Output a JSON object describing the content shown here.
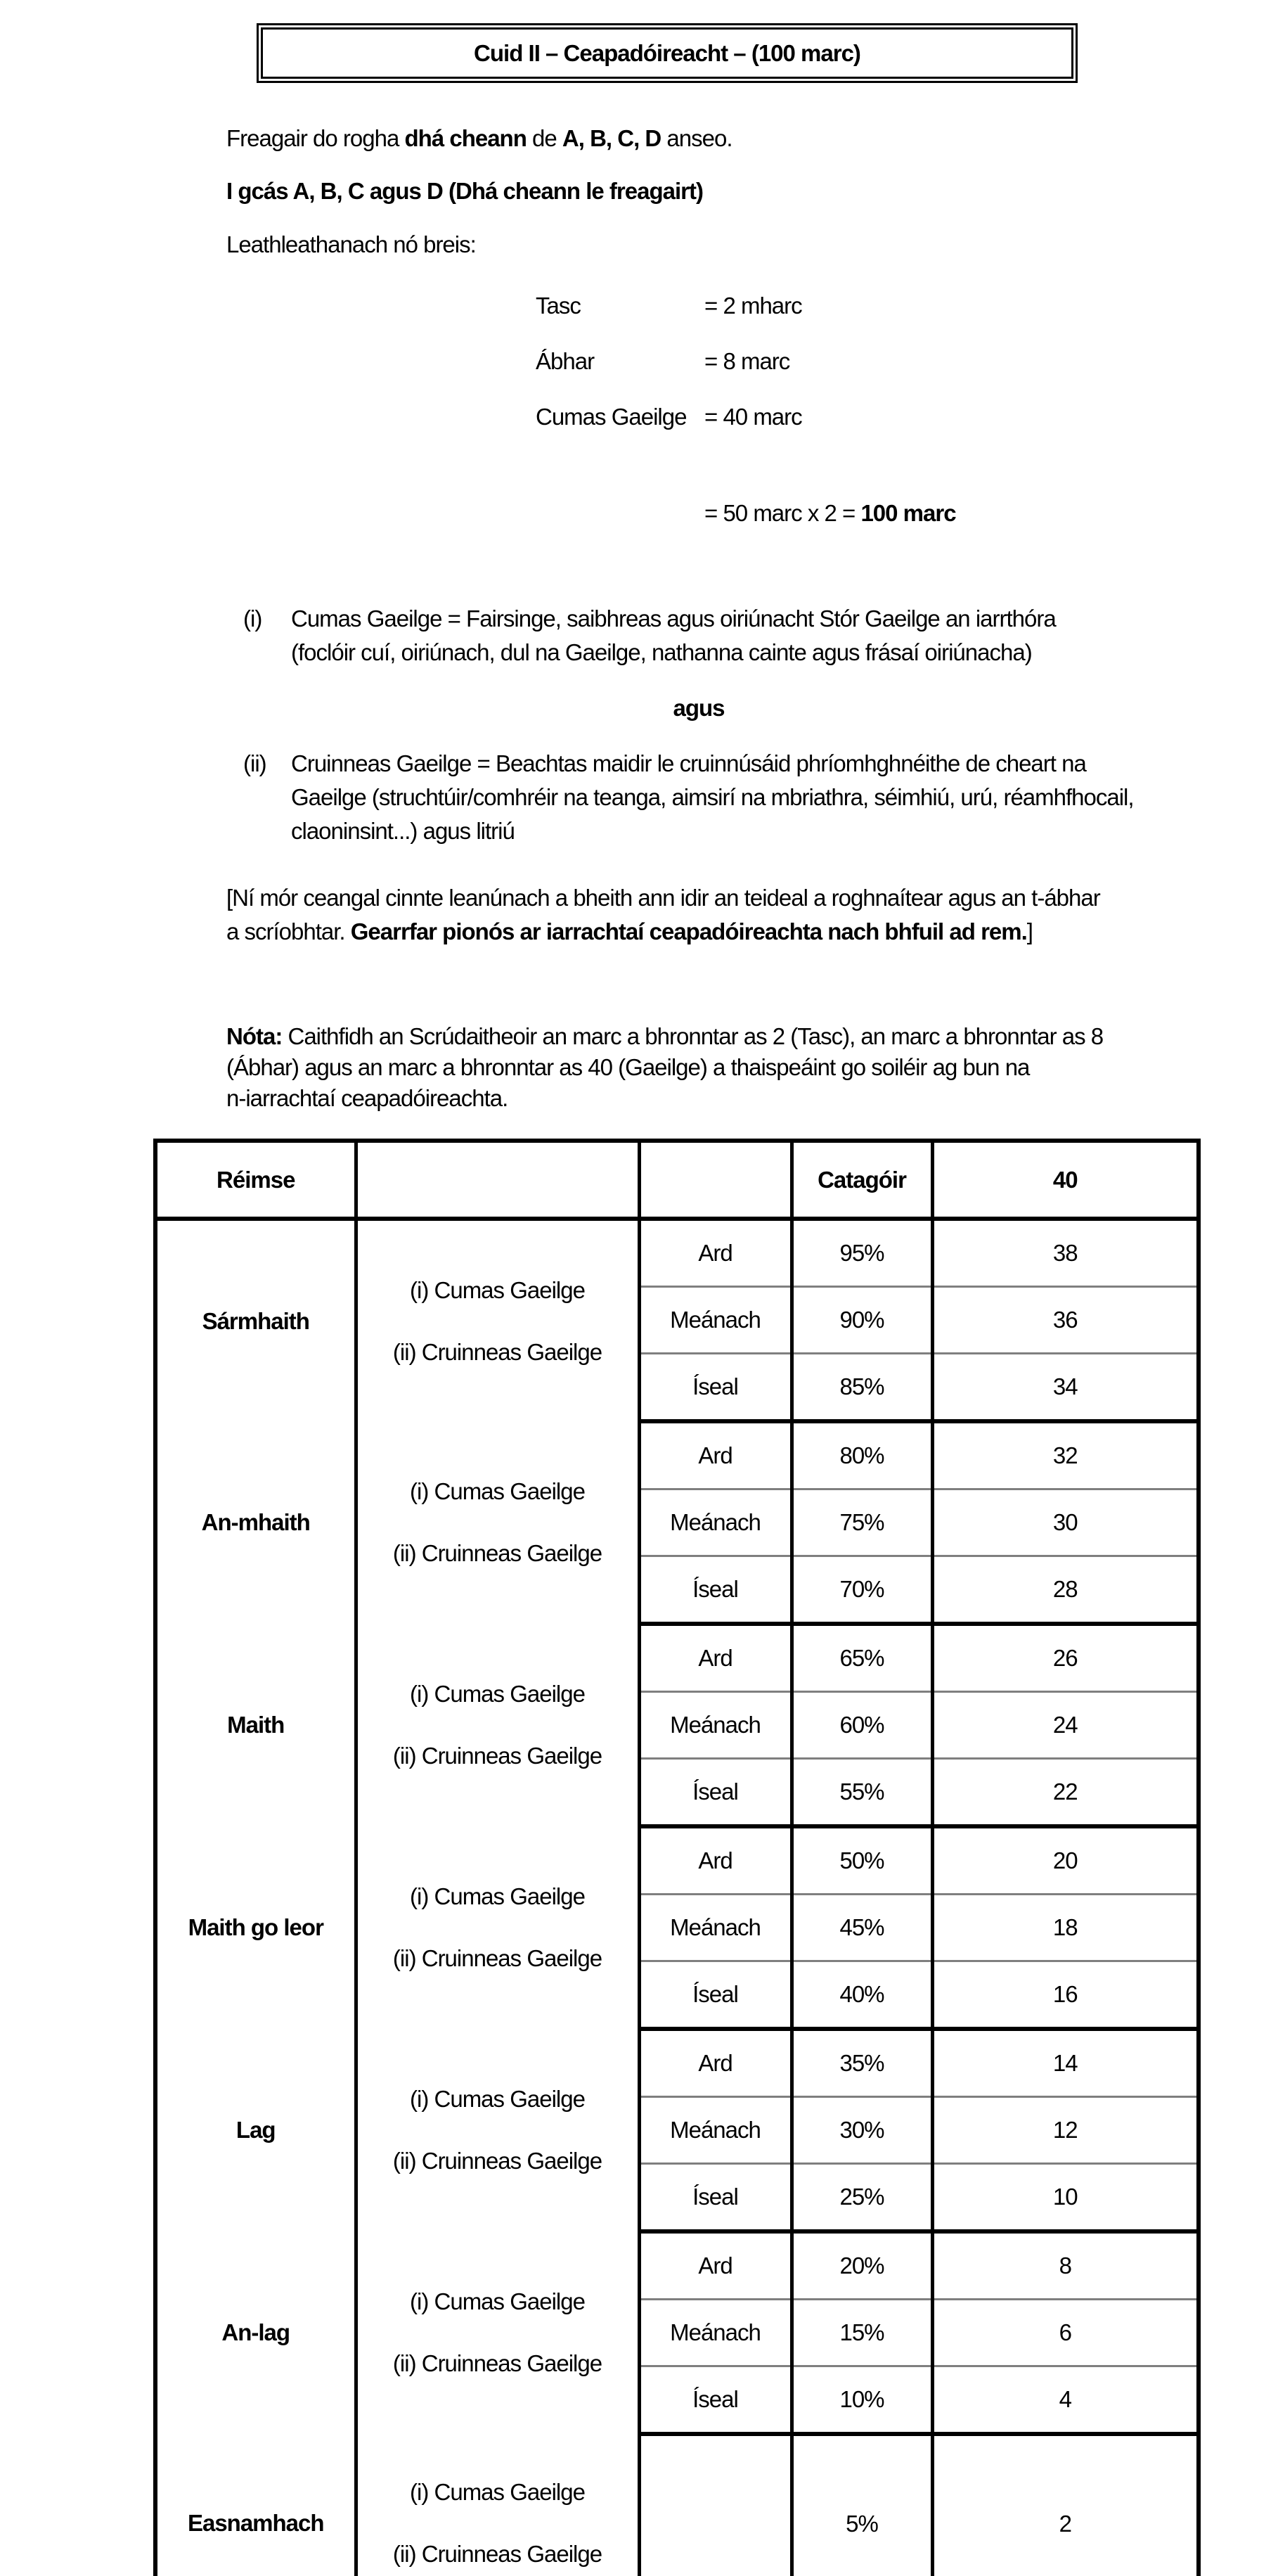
{
  "title": "Cuid II –  Ceapadóireacht  – (100 marc)",
  "intro": {
    "p1_prefix": "Freagair do rogha ",
    "p1_bold1": "dhá cheann",
    "p1_mid": " de ",
    "p1_bold2": "A, B, C, D",
    "p1_suffix": " anseo.",
    "p2": "I gcás A, B, C agus D (Dhá cheann le freagairt)",
    "p3": "Leathleathanach nó breis:"
  },
  "marks": {
    "rows": [
      {
        "label": "Tasc",
        "value": "= 2 mharc"
      },
      {
        "label": "Ábhar",
        "value": "= 8 marc"
      },
      {
        "label": "Cumas Gaeilge",
        "value": "= 40 marc"
      }
    ],
    "total_prefix": "= 50 marc x 2 = ",
    "total_bold": "100 marc"
  },
  "criteria": {
    "i_marker": "(i)",
    "i_line1": "Cumas Gaeilge = Fairsinge, saibhreas agus oiriúnacht Stór Gaeilge an iarrthóra",
    "i_line2": "(foclóir cuí, oiriúnach, dul na Gaeilge, nathanna cainte agus frásaí oiriúnacha)",
    "agus": "agus",
    "ii_marker": "(ii)",
    "ii_line1": "Cruinneas Gaeilge = Beachtas maidir le cruinnúsáid phríomhghnéithe de cheart na",
    "ii_line2": "Gaeilge (struchtúir/comhréir na teanga, aimsirí na mbriathra, séimhiú, urú, réamhfhocail,",
    "ii_line3": "claoninsint...) agus litriú"
  },
  "warning": {
    "line1": "[Ní mór ceangal cinnte leanúnach a bheith ann idir an teideal a roghnaítear agus an t-ábhar",
    "line2_prefix": "a scríobhtar. ",
    "line2_bold": "Gearrfar pionós ar iarrachtaí ceapadóireachta nach bhfuil ad rem.",
    "line2_suffix": "]"
  },
  "note": {
    "label": "Nóta:",
    "line1": " Caithfidh an Scrúdaitheoir an marc a bhronntar as 2 (Tasc), an marc a bhronntar as 8",
    "line2": "(Ábhar) agus an marc a bhronntar as 40 (Gaeilge) a thaispeáint go soiléir ag bun na",
    "line3": "n-iarrachtaí ceapadóireachta."
  },
  "table": {
    "header": {
      "col1": "Réimse",
      "col2": "",
      "col3": "",
      "col4": "Catagóir",
      "col5": "40"
    },
    "criteria_line1": "(i) Cumas Gaeilge",
    "criteria_line2": "(ii) Cruinneas Gaeilge",
    "groups": [
      {
        "name": "Sármhaith",
        "rows": [
          [
            "Ard",
            "95%",
            "38"
          ],
          [
            "Meánach",
            "90%",
            "36"
          ],
          [
            "Íseal",
            "85%",
            "34"
          ]
        ]
      },
      {
        "name": "An-mhaith",
        "rows": [
          [
            "Ard",
            "80%",
            "32"
          ],
          [
            "Meánach",
            "75%",
            "30"
          ],
          [
            "Íseal",
            "70%",
            "28"
          ]
        ]
      },
      {
        "name": "Maith",
        "rows": [
          [
            "Ard",
            "65%",
            "26"
          ],
          [
            "Meánach",
            "60%",
            "24"
          ],
          [
            "Íseal",
            "55%",
            "22"
          ]
        ]
      },
      {
        "name": "Maith go leor",
        "rows": [
          [
            "Ard",
            "50%",
            "20"
          ],
          [
            "Meánach",
            "45%",
            "18"
          ],
          [
            "Íseal",
            "40%",
            "16"
          ]
        ]
      },
      {
        "name": "Lag",
        "rows": [
          [
            "Ard",
            "35%",
            "14"
          ],
          [
            "Meánach",
            "30%",
            "12"
          ],
          [
            "Íseal",
            "25%",
            "10"
          ]
        ]
      },
      {
        "name": "An-lag",
        "rows": [
          [
            "Ard",
            "20%",
            "8"
          ],
          [
            "Meánach",
            "15%",
            "6"
          ],
          [
            "Íseal",
            "10%",
            "4"
          ]
        ]
      },
      {
        "name": "Easnamhach",
        "single": [
          "",
          "5%",
          "2"
        ]
      }
    ]
  }
}
